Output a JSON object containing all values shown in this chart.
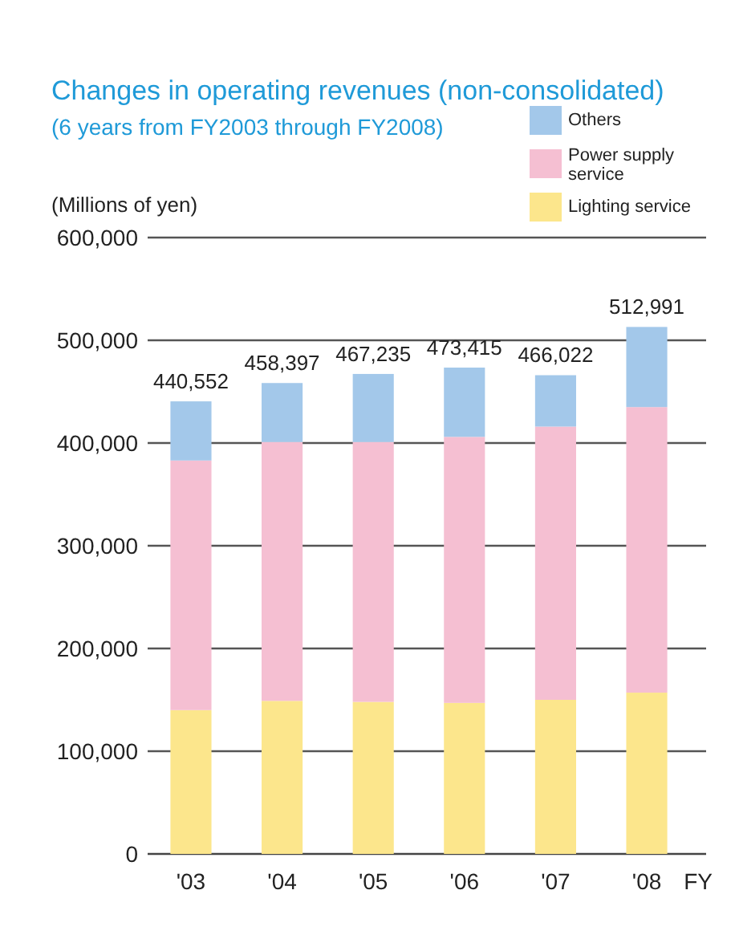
{
  "chart_data": {
    "type": "bar",
    "title": "Changes in operating revenues (non-consolidated)",
    "subtitle": "(6 years from FY2003 through FY2008)",
    "ylabel": "(Millions of yen)",
    "xlabel": "FY",
    "categories": [
      "'03",
      "'04",
      "'05",
      "'06",
      "'07",
      "'08"
    ],
    "stacked": true,
    "series": [
      {
        "name": "Lighting service",
        "color": "#fce68c",
        "values": [
          140000,
          149000,
          148000,
          147000,
          150000,
          157000
        ]
      },
      {
        "name": "Power supply service",
        "color": "#f5bfd2",
        "values": [
          243000,
          252000,
          253000,
          259000,
          266000,
          278000
        ]
      },
      {
        "name": "Others",
        "color": "#a3c8ea",
        "values": [
          57552,
          57397,
          66235,
          67415,
          50022,
          77991
        ]
      }
    ],
    "totals": [
      "440,552",
      "458,397",
      "467,235",
      "473,415",
      "466,022",
      "512,991"
    ],
    "ylim": [
      0,
      600000
    ],
    "yticks": [
      {
        "value": 0,
        "label": "0"
      },
      {
        "value": 100000,
        "label": "100,000"
      },
      {
        "value": 200000,
        "label": "200,000"
      },
      {
        "value": 300000,
        "label": "300,000"
      },
      {
        "value": 400000,
        "label": "400,000"
      },
      {
        "value": 500000,
        "label": "500,000"
      },
      {
        "value": 600000,
        "label": "600,000"
      }
    ],
    "grid": "y",
    "legend": "top right"
  }
}
